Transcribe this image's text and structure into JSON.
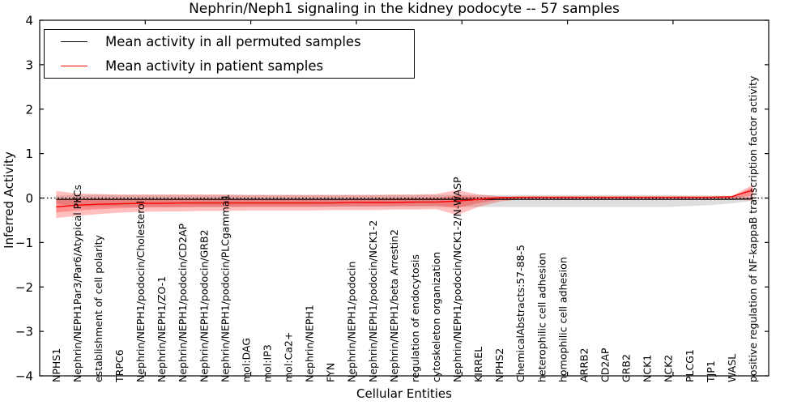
{
  "figure": {
    "title": "Nephrin/Neph1 signaling in the kidney podocyte -- 57 samples",
    "xlabel": "Cellular Entities",
    "ylabel": "Inferred Activity"
  },
  "chart_data": {
    "type": "line",
    "title": "Nephrin/Neph1 signaling in the kidney podocyte -- 57 samples",
    "xlabel": "Cellular Entities",
    "ylabel": "Inferred Activity",
    "ylim": [
      -4,
      4
    ],
    "yticks": [
      -4,
      -3,
      -2,
      -1,
      0,
      1,
      2,
      3,
      4
    ],
    "xlim": [
      0,
      34.53
    ],
    "xticks": [
      5,
      10,
      15,
      20,
      25,
      30
    ],
    "entity_offset": 0.78,
    "grid": false,
    "legend_position": "upper left",
    "zero_line": {
      "y": 0,
      "color": "#000000",
      "style": "dotted"
    },
    "categories": [
      "NPHS1",
      "Nephrin/NEPH1Par3/Par6/Atypical PKCs",
      "establishment of cell polarity",
      "TRPC6",
      "Nephrin/NEPH1/podocin/Cholesterol",
      "Nephrin/NEPH1/ZO-1",
      "Nephrin/NEPH1/podocin/CD2AP",
      "Nephrin/NEPH1/podocin/GRB2",
      "Nephrin/NEPH1/podocin/PLCgamma1",
      "mol:DAG",
      "mol:IP3",
      "mol:Ca2+",
      "Nephrin/NEPH1",
      "FYN",
      "Nephrin/NEPH1/podocin",
      "Nephrin/NEPH1/podocin/NCK1-2",
      "Nephrin/NEPH1/beta Arrestin2",
      "regulation of endocytosis",
      "cytoskeleton organization",
      "Nephrin/NEPH1/podocin/NCK1-2/N-WASP",
      "KIRREL",
      "NPHS2",
      "ChemicalAbstracts:57-88-5",
      "heterophilic cell adhesion",
      "homophilic cell adhesion",
      "ARRB2",
      "CD2AP",
      "GRB2",
      "NCK1",
      "NCK2",
      "PLCG1",
      "TJP1",
      "WASL",
      "positive regulation of NF-kappaB transcription factor activity"
    ],
    "series": [
      {
        "name": "Mean activity in all permuted samples",
        "color": "#000000",
        "line_width": 1.2,
        "band_color": "rgba(0,0,0,0.13)",
        "values": [
          -0.03,
          -0.03,
          -0.03,
          -0.03,
          -0.03,
          -0.03,
          -0.03,
          -0.03,
          -0.03,
          -0.03,
          -0.03,
          -0.03,
          -0.03,
          -0.03,
          -0.03,
          -0.03,
          -0.03,
          -0.03,
          -0.03,
          -0.03,
          -0.03,
          -0.03,
          -0.03,
          -0.03,
          -0.03,
          -0.03,
          -0.03,
          -0.03,
          -0.03,
          -0.03,
          -0.03,
          -0.03,
          -0.03,
          -0.02
        ],
        "band_upper": [
          0.05,
          0.07,
          0.07,
          0.07,
          0.07,
          0.07,
          0.07,
          0.07,
          0.07,
          0.07,
          0.07,
          0.07,
          0.07,
          0.07,
          0.07,
          0.07,
          0.07,
          0.07,
          0.07,
          0.07,
          0.07,
          0.07,
          0.07,
          0.07,
          0.07,
          0.07,
          0.07,
          0.07,
          0.07,
          0.07,
          0.06,
          0.06,
          0.05,
          0.03
        ],
        "band_lower": [
          -0.12,
          -0.2,
          -0.2,
          -0.2,
          -0.2,
          -0.2,
          -0.2,
          -0.2,
          -0.2,
          -0.2,
          -0.2,
          -0.2,
          -0.2,
          -0.2,
          -0.2,
          -0.2,
          -0.2,
          -0.2,
          -0.2,
          -0.2,
          -0.2,
          -0.2,
          -0.2,
          -0.2,
          -0.2,
          -0.2,
          -0.2,
          -0.2,
          -0.2,
          -0.2,
          -0.18,
          -0.16,
          -0.12,
          -0.06
        ]
      },
      {
        "name": "Mean activity in patient samples",
        "color": "#ff0000",
        "line_width": 1.4,
        "band_color": "rgba(255,0,0,0.25)",
        "band_inner_scale": 0.5,
        "values": [
          -0.2,
          -0.16,
          -0.14,
          -0.13,
          -0.12,
          -0.12,
          -0.11,
          -0.11,
          -0.11,
          -0.11,
          -0.11,
          -0.11,
          -0.11,
          -0.11,
          -0.1,
          -0.1,
          -0.1,
          -0.09,
          -0.09,
          -0.07,
          -0.03,
          0.01,
          0.02,
          0.02,
          0.02,
          0.02,
          0.02,
          0.02,
          0.02,
          0.02,
          0.02,
          0.02,
          0.03,
          0.18
        ],
        "band_upper": [
          0.16,
          0.1,
          0.09,
          0.08,
          0.08,
          0.08,
          0.08,
          0.08,
          0.08,
          0.07,
          0.07,
          0.07,
          0.07,
          0.07,
          0.07,
          0.07,
          0.08,
          0.08,
          0.09,
          0.18,
          0.08,
          0.04,
          0.03,
          0.03,
          0.03,
          0.03,
          0.03,
          0.03,
          0.03,
          0.03,
          0.03,
          0.03,
          0.04,
          0.3
        ],
        "band_lower": [
          -0.45,
          -0.4,
          -0.36,
          -0.33,
          -0.31,
          -0.3,
          -0.3,
          -0.29,
          -0.29,
          -0.28,
          -0.28,
          -0.28,
          -0.28,
          -0.27,
          -0.27,
          -0.27,
          -0.26,
          -0.26,
          -0.25,
          -0.38,
          -0.2,
          -0.08,
          -0.03,
          -0.02,
          -0.02,
          -0.02,
          -0.02,
          -0.02,
          -0.02,
          -0.02,
          -0.02,
          -0.02,
          -0.03,
          -0.06
        ]
      }
    ]
  },
  "legend": {
    "entries": [
      {
        "label": "Mean activity in all permuted samples",
        "color": "#000000"
      },
      {
        "label": "Mean activity in patient samples",
        "color": "#ff0000"
      }
    ]
  }
}
